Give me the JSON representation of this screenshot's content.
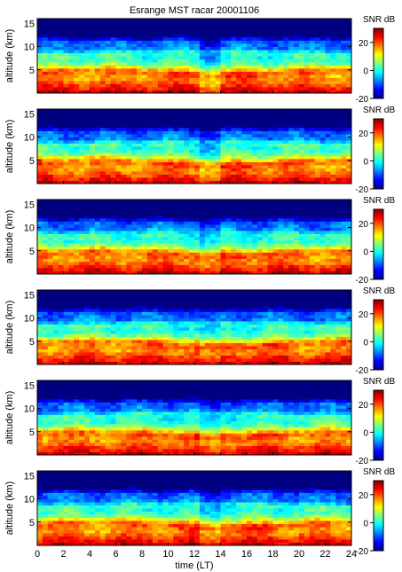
{
  "figure": {
    "title": "Esrange MST racar 20001106"
  },
  "chart_data": {
    "type": "heatmap",
    "title": "Esrange MST racar 20001106",
    "xlabel": "time (LT)",
    "ylabel": "altitude (km)",
    "xlim": [
      0,
      24
    ],
    "ylim": [
      0,
      16
    ],
    "x_ticks": [
      "0",
      "2",
      "4",
      "6",
      "8",
      "10",
      "12",
      "14",
      "16",
      "18",
      "20",
      "22",
      "24"
    ],
    "y_ticks": [
      "5",
      "10",
      "15"
    ],
    "colorbar": {
      "label": "SNR dB",
      "range": [
        -20,
        30
      ],
      "ticks": [
        "20",
        "0",
        "-20"
      ],
      "colormap": "jet"
    },
    "panels": [
      {
        "ylabel": "altitude (km)"
      },
      {
        "ylabel": "altitude (km)"
      },
      {
        "ylabel": "altitude (km)"
      },
      {
        "ylabel": "altitude (km)"
      },
      {
        "ylabel": "altitude (km)"
      },
      {
        "ylabel": "altitude (km)"
      }
    ],
    "colors": {
      "jet_low": "#00008f",
      "jet_mid": "#7fff7f",
      "jet_high": "#800000"
    }
  }
}
